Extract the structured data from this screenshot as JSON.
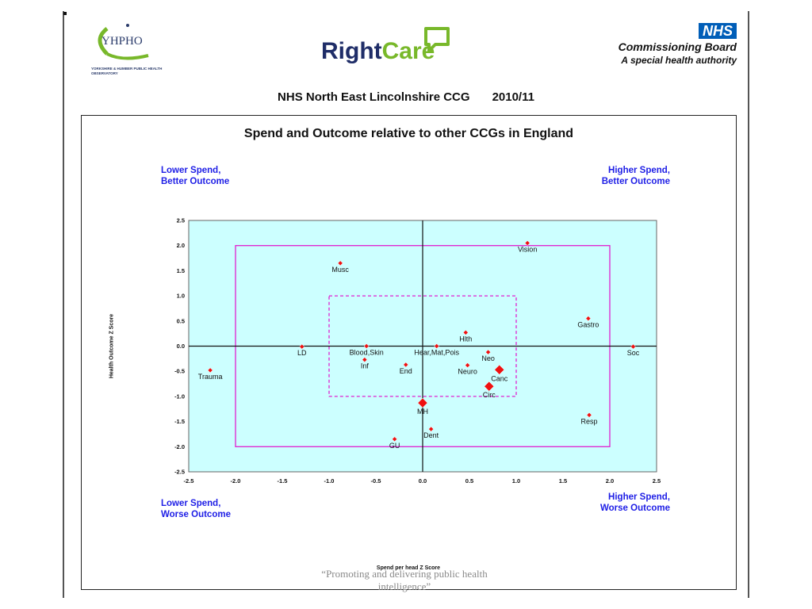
{
  "logos": {
    "yhpho_text": "YHPHO",
    "yhpho_sub": "YORKSHIRE & HUMBER PUBLIC HEALTH OBSERVATORY",
    "rightcare_part1": "Right",
    "rightcare_part2": "Care",
    "nhs_badge": "NHS",
    "nhs_line1": "Commissioning Board",
    "nhs_line2": "A special health authority"
  },
  "header": {
    "organisation": "NHS North East Lincolnshire CCG",
    "year": "2010/11"
  },
  "quadrants": {
    "top_left": [
      "Lower Spend,",
      "Better Outcome"
    ],
    "top_right": [
      "Higher Spend,",
      "Better Outcome"
    ],
    "bottom_left": [
      "Lower Spend,",
      "Worse Outcome"
    ],
    "bottom_right": [
      "Higher Spend,",
      "Worse Outcome"
    ]
  },
  "footer": {
    "quote_line1": "“Promoting and delivering public health",
    "quote_line2": "intelligence”"
  },
  "colors": {
    "plot_background": "#ccffff",
    "marker": "#ee1111",
    "box_outline": "#e020d0",
    "quadrant_text": "#1e1ee6"
  },
  "chart_data": {
    "type": "scatter",
    "title": "Spend and Outcome relative to other CCGs in England",
    "xlabel": "Spend per head Z Score",
    "ylabel": "Health Outcome Z Score",
    "xlim": [
      -2.5,
      2.5
    ],
    "ylim": [
      -2.5,
      2.5
    ],
    "xticks": [
      "-2.5",
      "-2.0",
      "-1.5",
      "-1.0",
      "-0.5",
      "0.0",
      "0.5",
      "1.0",
      "1.5",
      "2.0",
      "2.5"
    ],
    "yticks": [
      "2.5",
      "2.0",
      "1.5",
      "1.0",
      "0.5",
      "0.0",
      "-0.5",
      "-1.0",
      "-1.5",
      "-2.0",
      "-2.5"
    ],
    "grid": false,
    "reference_boxes": [
      {
        "style": "solid",
        "x": [
          -2.0,
          2.0
        ],
        "y": [
          -2.0,
          2.0
        ]
      },
      {
        "style": "dashed",
        "x": [
          -1.0,
          1.0
        ],
        "y": [
          -1.0,
          1.0
        ]
      }
    ],
    "points": [
      {
        "label": "Vision",
        "x": 1.12,
        "y": 2.05,
        "size": "small"
      },
      {
        "label": "Musc",
        "x": -0.88,
        "y": 1.65,
        "size": "small"
      },
      {
        "label": "Gastro",
        "x": 1.77,
        "y": 0.55,
        "size": "small"
      },
      {
        "label": "Hlth",
        "x": 0.46,
        "y": 0.27,
        "size": "small"
      },
      {
        "label": "LD",
        "x": -1.29,
        "y": -0.01,
        "size": "small"
      },
      {
        "label": "Blood,Skin",
        "x": -0.6,
        "y": 0.0,
        "size": "small"
      },
      {
        "label": "Hear,Mat,Pois",
        "x": 0.15,
        "y": 0.0,
        "size": "small"
      },
      {
        "label": "Soc",
        "x": 2.25,
        "y": -0.01,
        "size": "small"
      },
      {
        "label": "Neo",
        "x": 0.7,
        "y": -0.12,
        "size": "small"
      },
      {
        "label": "Inf",
        "x": -0.62,
        "y": -0.27,
        "size": "small"
      },
      {
        "label": "End",
        "x": -0.18,
        "y": -0.37,
        "size": "small"
      },
      {
        "label": "Neuro",
        "x": 0.48,
        "y": -0.38,
        "size": "small"
      },
      {
        "label": "Canc",
        "x": 0.82,
        "y": -0.47,
        "size": "large"
      },
      {
        "label": "Trauma",
        "x": -2.27,
        "y": -0.48,
        "size": "small"
      },
      {
        "label": "Circ",
        "x": 0.71,
        "y": -0.8,
        "size": "large"
      },
      {
        "label": "MH",
        "x": 0.0,
        "y": -1.13,
        "size": "large"
      },
      {
        "label": "Resp",
        "x": 1.78,
        "y": -1.37,
        "size": "small"
      },
      {
        "label": "Dent",
        "x": 0.09,
        "y": -1.65,
        "size": "small"
      },
      {
        "label": "GU",
        "x": -0.3,
        "y": -1.85,
        "size": "small"
      }
    ]
  }
}
